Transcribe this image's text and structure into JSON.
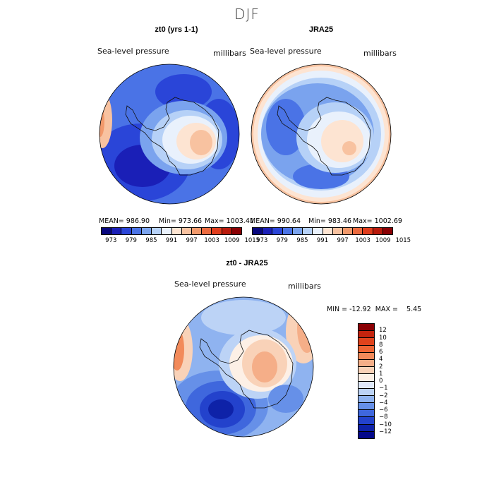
{
  "figure": {
    "season": "DJF",
    "variable": "Sea-level pressure",
    "units": "millibars"
  },
  "panels": [
    {
      "title": "zt0 (yrs 1-1)",
      "mean_label": "MEAN= 986.90",
      "min_label": "Min= 973.66",
      "max_label": "Max= 1003.41"
    },
    {
      "title": "JRA25",
      "mean_label": "MEAN= 990.64",
      "min_label": "Min= 983.46",
      "max_label": "Max= 1002.69"
    }
  ],
  "diff": {
    "title": "zt0 - JRA25",
    "min_max_label": "MIN = -12.92  MAX =    5.45"
  },
  "colorbar_abs": {
    "ticks": [
      "973",
      "979",
      "985",
      "991",
      "997",
      "1003",
      "1009",
      "1015"
    ],
    "colors": [
      "#08077e",
      "#1a1fb7",
      "#2a45d8",
      "#4a73e6",
      "#7aa3ee",
      "#b6d1f7",
      "#e9f1fc",
      "#fde4d2",
      "#f8c2a0",
      "#f2996b",
      "#ec6a3e",
      "#e03c1c",
      "#b91a0c",
      "#8a0004"
    ]
  },
  "colorbar_diff": {
    "ticks": [
      "12",
      "10",
      "8",
      "6",
      "4",
      "2",
      "1",
      "0",
      "−1",
      "−2",
      "−4",
      "−6",
      "−8",
      "−10",
      "−12"
    ],
    "colors": [
      "#8a0004",
      "#c4240e",
      "#e0431c",
      "#ee6635",
      "#f28a5a",
      "#f5ae88",
      "#f9d2b8",
      "#fdf0e6",
      "#dfe9fb",
      "#bcd3f6",
      "#8fb3f0",
      "#6690e8",
      "#3f67dd",
      "#2342cc",
      "#0e22a8",
      "#04088a"
    ]
  }
}
